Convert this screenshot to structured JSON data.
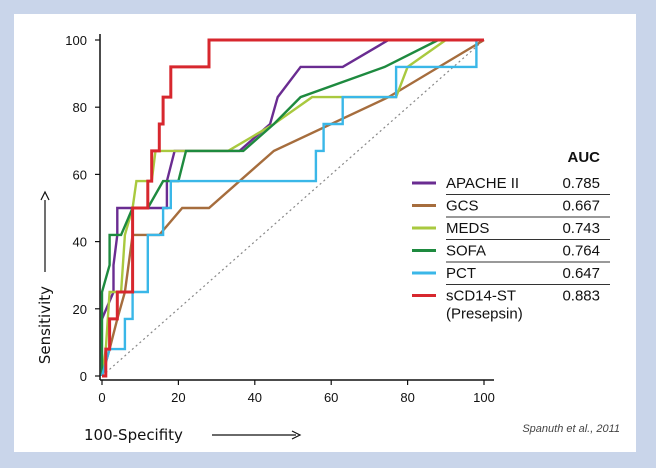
{
  "chart_data": {
    "type": "line",
    "xlabel": "100-Specifity",
    "ylabel": "Sensitivity",
    "xlim": [
      0,
      100
    ],
    "ylim": [
      0,
      100
    ],
    "xticks": [
      0,
      20,
      40,
      60,
      80,
      100
    ],
    "yticks": [
      0,
      20,
      40,
      60,
      80,
      100
    ],
    "grid": false,
    "legend_position": "right",
    "legend_header": "AUC",
    "reference_line": {
      "style": "dotted",
      "x": [
        0,
        100
      ],
      "y": [
        0,
        100
      ]
    },
    "series": [
      {
        "name": "APACHE II",
        "auc": "0.785",
        "color": "#6a2c91",
        "x": [
          0,
          3,
          3,
          4,
          4,
          17,
          17,
          19,
          19,
          22,
          22,
          36,
          44,
          46,
          52,
          63,
          75,
          100
        ],
        "y": [
          17,
          25,
          33,
          42,
          50,
          50,
          58,
          67,
          67,
          67,
          67,
          67,
          75,
          83,
          92,
          92,
          100,
          100
        ]
      },
      {
        "name": "GCS",
        "auc": "0.667",
        "color": "#a66d3d",
        "x": [
          0,
          2,
          4,
          6,
          8,
          15,
          21,
          28,
          45,
          75,
          100
        ],
        "y": [
          0,
          8,
          17,
          25,
          42,
          42,
          50,
          50,
          67,
          83,
          100
        ]
      },
      {
        "name": "MEDS",
        "auc": "0.743",
        "color": "#a9c93f",
        "x": [
          0,
          1,
          2,
          5,
          6,
          8,
          9,
          11,
          13,
          14,
          15,
          16,
          33,
          45,
          55,
          77,
          80,
          90,
          100
        ],
        "y": [
          0,
          8,
          25,
          25,
          42,
          50,
          58,
          58,
          58,
          67,
          67,
          67,
          67,
          75,
          83,
          83,
          92,
          100,
          100
        ]
      },
      {
        "name": "SOFA",
        "auc": "0.764",
        "color": "#1e8a3f",
        "x": [
          0,
          0,
          2,
          2,
          5,
          8,
          10,
          12,
          16,
          20,
          22,
          37,
          45,
          52,
          74,
          88,
          100
        ],
        "y": [
          0,
          25,
          33,
          42,
          42,
          50,
          50,
          50,
          58,
          58,
          67,
          67,
          75,
          83,
          92,
          100,
          100
        ]
      },
      {
        "name": "PCT",
        "auc": "0.647",
        "color": "#3ab7e8",
        "x": [
          0,
          2,
          4,
          6,
          6,
          8,
          8,
          12,
          12,
          16,
          16,
          18,
          18,
          56,
          56,
          58,
          58,
          63,
          63,
          77,
          77,
          98,
          98,
          100
        ],
        "y": [
          0,
          8,
          8,
          8,
          17,
          17,
          25,
          25,
          42,
          42,
          50,
          50,
          58,
          58,
          67,
          67,
          75,
          75,
          83,
          83,
          92,
          92,
          100,
          100
        ]
      },
      {
        "name": "sCD14-ST",
        "name_line2": "(Presepsin)",
        "auc": "0.883",
        "color": "#d7272e",
        "x": [
          0,
          1,
          1,
          2,
          2,
          4,
          4,
          8,
          8,
          12,
          12,
          13,
          13,
          15,
          15,
          16,
          16,
          18,
          18,
          21,
          21,
          28,
          28,
          100
        ],
        "y": [
          0,
          0,
          8,
          8,
          17,
          17,
          25,
          25,
          50,
          50,
          58,
          58,
          67,
          67,
          75,
          75,
          83,
          83,
          92,
          92,
          92,
          92,
          100,
          100
        ]
      }
    ]
  },
  "citation": "Spanuth et al., 2011"
}
